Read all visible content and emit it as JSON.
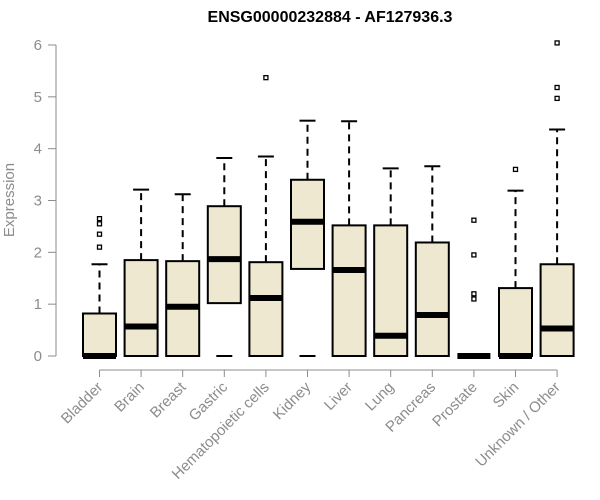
{
  "chart_data": {
    "type": "boxplot",
    "title": "ENSG00000232884 - AF127936.3",
    "xlabel": "",
    "ylabel": "Expression",
    "ylim": [
      0,
      6
    ],
    "yticks": [
      0,
      1,
      2,
      3,
      4,
      5,
      6
    ],
    "grid": false,
    "legend": "none",
    "box_fill": "#eee8d0",
    "box_stroke": "#000000",
    "axis_color": "#8c8c8c",
    "categories": [
      "Bladder",
      "Brain",
      "Breast",
      "Gastric",
      "Hematopoietic cells",
      "Kidney",
      "Liver",
      "Lung",
      "Pancreas",
      "Prostate",
      "Skin",
      "Unknown / Other"
    ],
    "boxes": [
      {
        "label": "Bladder",
        "q1": 0,
        "median": 0,
        "q3": 0.82,
        "whisker_low": 0,
        "whisker_high": 1.77,
        "outliers": [
          2.1,
          2.35,
          2.55,
          2.65
        ]
      },
      {
        "label": "Brain",
        "q1": 0,
        "median": 0.57,
        "q3": 1.85,
        "whisker_low": 0,
        "whisker_high": 3.21,
        "outliers": []
      },
      {
        "label": "Breast",
        "q1": 0,
        "median": 0.95,
        "q3": 1.83,
        "whisker_low": 0,
        "whisker_high": 3.12,
        "outliers": []
      },
      {
        "label": "Gastric",
        "q1": 1.02,
        "median": 1.87,
        "q3": 2.89,
        "whisker_low": 0,
        "whisker_high": 3.82,
        "outliers": []
      },
      {
        "label": "Hematopoietic cells",
        "q1": 0,
        "median": 1.12,
        "q3": 1.81,
        "whisker_low": 0,
        "whisker_high": 3.85,
        "outliers": [
          5.37
        ]
      },
      {
        "label": "Kidney",
        "q1": 1.68,
        "median": 2.59,
        "q3": 3.4,
        "whisker_low": 0,
        "whisker_high": 4.54,
        "outliers": []
      },
      {
        "label": "Liver",
        "q1": 0,
        "median": 1.66,
        "q3": 2.52,
        "whisker_low": 0,
        "whisker_high": 4.53,
        "outliers": []
      },
      {
        "label": "Lung",
        "q1": 0,
        "median": 0.39,
        "q3": 2.52,
        "whisker_low": 0,
        "whisker_high": 3.62,
        "outliers": []
      },
      {
        "label": "Pancreas",
        "q1": 0,
        "median": 0.79,
        "q3": 2.19,
        "whisker_low": 0,
        "whisker_high": 3.66,
        "outliers": []
      },
      {
        "label": "Prostate",
        "q1": 0,
        "median": 0,
        "q3": 0,
        "whisker_low": 0,
        "whisker_high": 0,
        "outliers": [
          1.1,
          1.2,
          1.95,
          2.62
        ]
      },
      {
        "label": "Skin",
        "q1": 0,
        "median": 0,
        "q3": 1.31,
        "whisker_low": 0,
        "whisker_high": 3.19,
        "outliers": [
          3.6
        ]
      },
      {
        "label": "Unknown / Other",
        "q1": 0,
        "median": 0.53,
        "q3": 1.77,
        "whisker_low": 0,
        "whisker_high": 4.37,
        "outliers": [
          4.97,
          5.18,
          6.04
        ]
      }
    ]
  }
}
